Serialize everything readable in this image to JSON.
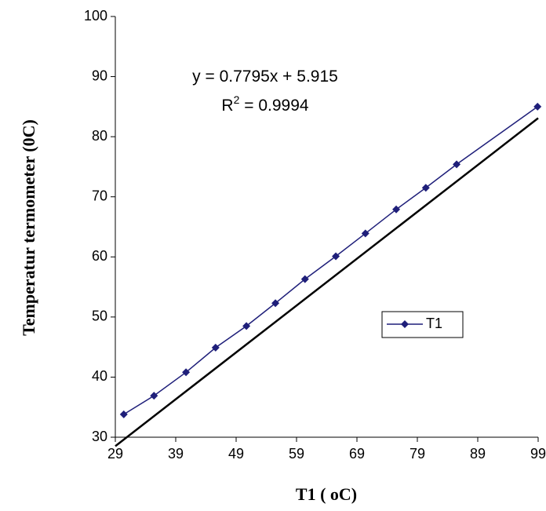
{
  "chart_data": {
    "type": "line",
    "x_label": "T1 ( oC)",
    "y_label": "Temperatur termometer (0C)",
    "equation": "y = 0.7795x + 5.915",
    "r_squared": {
      "prefix": "R",
      "sup": "2",
      "rest": " = 0.9994"
    },
    "trendline": {
      "slope": 0.7795,
      "intercept": 5.915,
      "color": "#000000"
    },
    "series": [
      {
        "name": "T1",
        "color": "#1f1f7a",
        "x": [
          30.4,
          35.4,
          40.7,
          45.6,
          50.7,
          55.5,
          60.4,
          65.5,
          70.4,
          75.5,
          80.4,
          85.5,
          98.9
        ],
        "values": [
          33.8,
          36.9,
          40.8,
          44.9,
          48.5,
          52.3,
          56.3,
          60.1,
          63.9,
          67.9,
          71.5,
          75.4,
          85.0
        ]
      }
    ],
    "xlim": [
      29,
      99
    ],
    "xticks": [
      29,
      39,
      49,
      59,
      69,
      79,
      89,
      99
    ],
    "ylim": [
      30,
      100
    ],
    "yticks": [
      30,
      40,
      50,
      60,
      70,
      80,
      90,
      100
    ],
    "legend": "right"
  }
}
